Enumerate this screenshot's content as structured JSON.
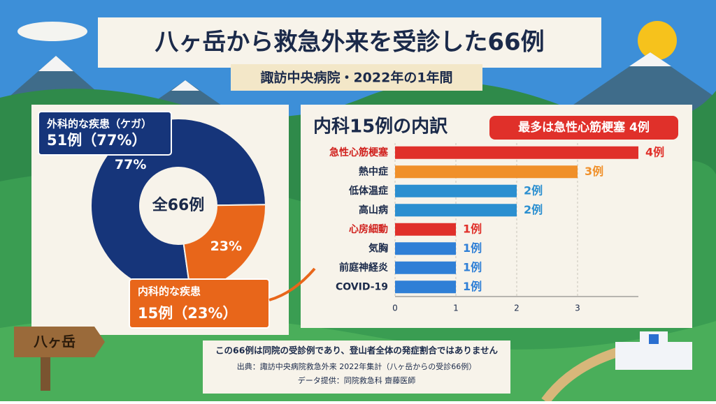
{
  "header": {
    "title": "八ヶ岳から救急外来を受診した66例",
    "subtitle": "諏訪中央病院・2022年の1年間"
  },
  "chart_data": [
    {
      "type": "pie",
      "center_label": "全66例",
      "categories": [
        "外科的な疾患（ケガ）",
        "内科的な疾患"
      ],
      "values": [
        77,
        23
      ],
      "value_labels": [
        "77%",
        "23%"
      ],
      "colors": [
        "#16357a",
        "#e8661a"
      ],
      "callouts": [
        "51例（77%）",
        "15例（23%）"
      ]
    },
    {
      "type": "barh",
      "title": "内科15例の内訳",
      "badge": "最多は急性心筋梗塞 4例",
      "categories": [
        "急性心筋梗塞",
        "熱中症",
        "低体温症",
        "高山病",
        "心房細動",
        "気胸",
        "前庭神経炎",
        "COVID-19"
      ],
      "values": [
        4,
        3,
        2,
        2,
        1,
        1,
        1,
        1
      ],
      "value_labels": [
        "4例",
        "3例",
        "2例",
        "2例",
        "1例",
        "1例",
        "1例",
        "1例"
      ],
      "colors": [
        "#e0302a",
        "#f0902a",
        "#2b8fd0",
        "#2b8fd0",
        "#e0302a",
        "#2f7fd6",
        "#2f7fd6",
        "#2f7fd6"
      ],
      "label_colors": [
        "#d0201c",
        "#1b2a4a",
        "#1b2a4a",
        "#1b2a4a",
        "#d0201c",
        "#1b2a4a",
        "#1b2a4a",
        "#1b2a4a"
      ],
      "xlim": [
        0,
        4
      ],
      "xticks": [
        0,
        1,
        2,
        3
      ],
      "grid": true
    }
  ],
  "footer": {
    "note": "この66例は同院の受診例であり、登山者全体の発症割合ではありません",
    "source": "出典：諏訪中央病院救急外来 2022年集計（八ヶ岳からの受診66例）",
    "credit": "データ提供：同院救急科 齋藤医師"
  },
  "sign": "八ヶ岳"
}
